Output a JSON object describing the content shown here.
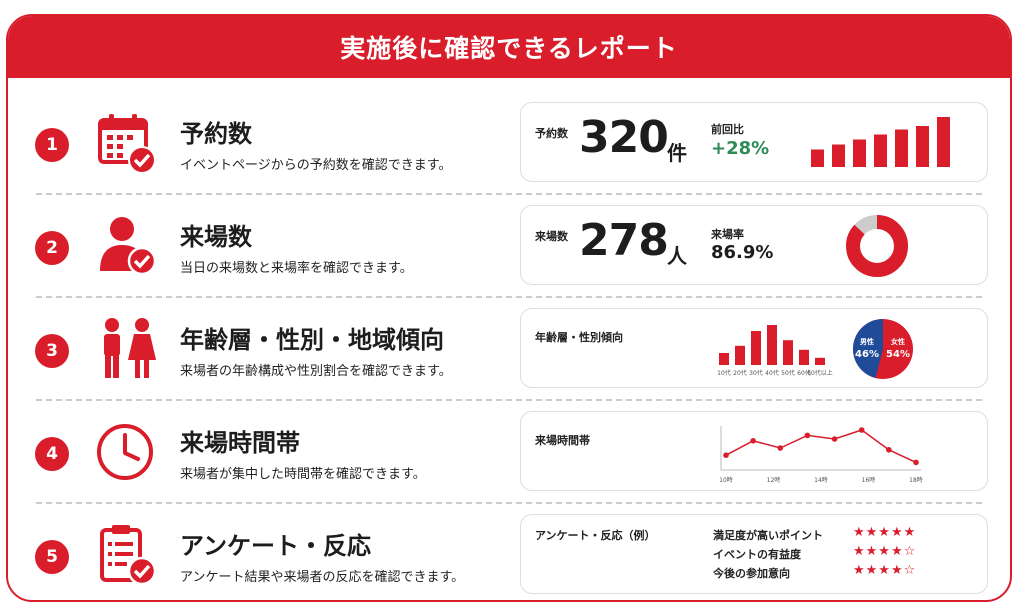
{
  "header": {
    "title": "実施後に確認できるレポート"
  },
  "colors": {
    "accent": "#d91d2b",
    "positive": "#2e8b57",
    "male": "#1f4b99",
    "track": "#cccccc"
  },
  "rows": [
    {
      "number": "1",
      "icon": "calendar-check-icon",
      "title": "予約数",
      "desc": "イベントページからの予約数を確認できます。",
      "panel": {
        "label": "予約数",
        "value": "320",
        "unit": "件",
        "sub_label": "前回比",
        "sub_value": "+28%",
        "bars": [
          0.35,
          0.45,
          0.55,
          0.65,
          0.75,
          0.82,
          1.0
        ]
      }
    },
    {
      "number": "2",
      "icon": "person-check-icon",
      "title": "来場数",
      "desc": "当日の来場数と来場率を確認できます。",
      "panel": {
        "label": "来場数",
        "value": "278",
        "unit": "人",
        "sub_label": "来場率",
        "sub_value": "86.9%",
        "rate": 0.869
      }
    },
    {
      "number": "3",
      "icon": "male-female-icon",
      "title": "年齢層・性別・地域傾向",
      "desc": "来場者の年齢構成や性別割合を確認できます。",
      "panel": {
        "label": "年齢層・性別傾向",
        "age_categories": [
          "10代",
          "20代",
          "30代",
          "40代",
          "50代",
          "60代",
          "60代以上"
        ],
        "age_values": [
          0.3,
          0.48,
          0.85,
          1.0,
          0.62,
          0.38,
          0.18
        ],
        "male_label": "男性",
        "male_pct": "46%",
        "male_value": 0.46,
        "female_label": "女性",
        "female_pct": "54%",
        "female_value": 0.54
      }
    },
    {
      "number": "4",
      "icon": "clock-icon",
      "title": "来場時間帯",
      "desc": "来場者が集中した時間帯を確認できます。",
      "panel": {
        "label": "来場時間帯",
        "x_ticks": [
          "10時",
          "12時",
          "14時",
          "16時",
          "18時"
        ],
        "values": [
          0.3,
          0.7,
          0.5,
          0.85,
          0.75,
          1.0,
          0.45,
          0.1
        ]
      }
    },
    {
      "number": "5",
      "icon": "clipboard-check-icon",
      "title": "アンケート・反応",
      "desc": "アンケート結果や来場者の反応を確認できます。",
      "panel": {
        "label": "アンケート・反応（例）",
        "items": [
          {
            "label": "満足度が高いポイント",
            "stars": "★★★★★"
          },
          {
            "label": "イベントの有益度",
            "stars": "★★★★☆"
          },
          {
            "label": "今後の参加意向",
            "stars": "★★★★☆"
          }
        ]
      }
    }
  ]
}
